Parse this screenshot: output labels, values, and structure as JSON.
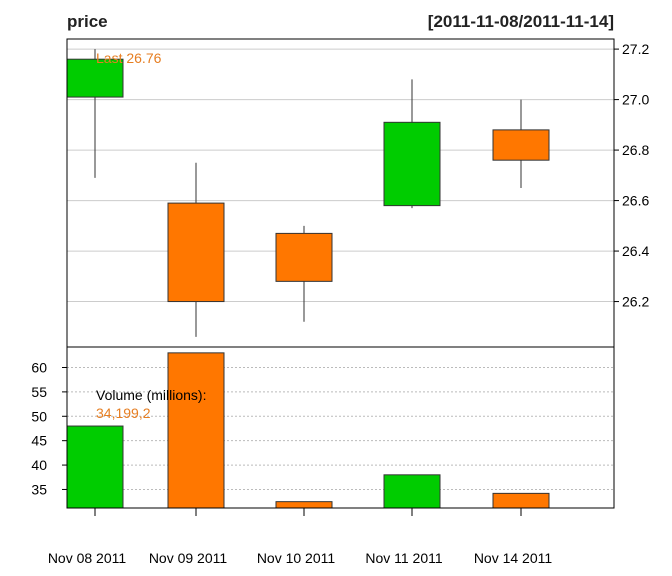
{
  "chart_data": {
    "type": "candlestick",
    "title": "price",
    "date_range": "[2011-11-08/2011-11-14]",
    "last_label": "Last 26.76",
    "volume_label": "Volume (millions):",
    "volume_value_label": "34,199,2",
    "categories": [
      "Nov 08 2011",
      "Nov 09 2011",
      "Nov 10 2011",
      "Nov 11 2011",
      "Nov 14 2011"
    ],
    "ohlc": [
      {
        "open": 27.01,
        "high": 27.2,
        "low": 26.69,
        "close": 27.16
      },
      {
        "open": 26.59,
        "high": 26.75,
        "low": 26.06,
        "close": 26.2
      },
      {
        "open": 26.47,
        "high": 26.5,
        "low": 26.12,
        "close": 26.28
      },
      {
        "open": 26.58,
        "high": 27.08,
        "low": 26.57,
        "close": 26.91
      },
      {
        "open": 26.88,
        "high": 27.0,
        "low": 26.65,
        "close": 26.76
      }
    ],
    "volume": [
      48,
      63,
      32.5,
      38,
      34.2
    ],
    "price_ylim": [
      26.02,
      27.24
    ],
    "price_ticks": [
      "26.2",
      "26.4",
      "26.6",
      "26.8",
      "27.0",
      "27.2"
    ],
    "volume_ylim": [
      31.2,
      64.2
    ],
    "volume_ticks": [
      "35",
      "40",
      "45",
      "50",
      "55",
      "60"
    ],
    "colors": {
      "up": "#00cc00",
      "down": "#ff7700",
      "label": "#e67e22",
      "grid": "#cccccc"
    }
  }
}
